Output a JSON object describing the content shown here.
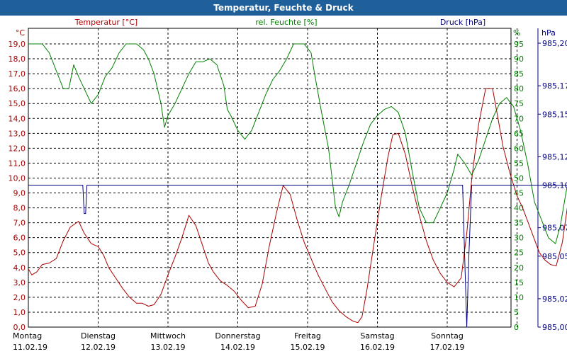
{
  "window_title": "Temperatur, Feuchte & Druck",
  "chart_data": {
    "type": "line",
    "title": "Temperatur, Feuchte & Druck",
    "x_categories": [
      {
        "day": "Montag",
        "date": "11.02.19"
      },
      {
        "day": "Dienstag",
        "date": "12.02.19"
      },
      {
        "day": "Mittwoch",
        "date": "13.02.19"
      },
      {
        "day": "Donnerstag",
        "date": "14.02.19"
      },
      {
        "day": "Freitag",
        "date": "15.02.19"
      },
      {
        "day": "Samstag",
        "date": "16.02.19"
      },
      {
        "day": "Sonntag",
        "date": "17.02.19"
      }
    ],
    "axes": {
      "temp": {
        "label": "Temperatur [°C]",
        "unit": "°C",
        "min": 0,
        "max": 19,
        "ticks": [
          "0,0",
          "1,0",
          "2,0",
          "3,0",
          "4,0",
          "5,0",
          "6,0",
          "7,0",
          "8,0",
          "9,0",
          "10,0",
          "11,0",
          "12,0",
          "13,0",
          "14,0",
          "15,0",
          "16,0",
          "17,0",
          "18,0",
          "19,0"
        ]
      },
      "hum": {
        "label": "rel. Feuchte [%]",
        "unit": "%",
        "min": 0,
        "max": 95,
        "ticks": [
          "0",
          "5",
          "10",
          "15",
          "20",
          "25",
          "30",
          "35",
          "40",
          "45",
          "50",
          "55",
          "60",
          "65",
          "70",
          "75",
          "80",
          "85",
          "90",
          "95"
        ]
      },
      "press": {
        "label": "Druck [hPa]",
        "unit": "hPa",
        "min": 985.0,
        "max": 985.2,
        "ticks": [
          "985,00",
          "985,02",
          "985,05",
          "985,07",
          "985,10",
          "985,12",
          "985,15",
          "985,17",
          "985,20"
        ]
      }
    },
    "grid": true,
    "colors": {
      "temp": "#aa0000",
      "hum": "#008000",
      "press": "#000080",
      "title_bar": "#1f5f9a",
      "grid": "#000000"
    },
    "series": [
      {
        "name": "Temperatur [°C]",
        "axis": "temp",
        "points": [
          [
            0,
            3.9
          ],
          [
            0.05,
            3.5
          ],
          [
            0.12,
            3.7
          ],
          [
            0.2,
            4.2
          ],
          [
            0.3,
            4.3
          ],
          [
            0.4,
            4.6
          ],
          [
            0.5,
            5.8
          ],
          [
            0.6,
            6.7
          ],
          [
            0.72,
            7.1
          ],
          [
            0.8,
            6.3
          ],
          [
            0.9,
            5.6
          ],
          [
            1.0,
            5.4
          ],
          [
            1.08,
            4.8
          ],
          [
            1.15,
            4.0
          ],
          [
            1.25,
            3.3
          ],
          [
            1.35,
            2.6
          ],
          [
            1.45,
            2.0
          ],
          [
            1.55,
            1.6
          ],
          [
            1.63,
            1.6
          ],
          [
            1.72,
            1.4
          ],
          [
            1.8,
            1.5
          ],
          [
            1.9,
            2.2
          ],
          [
            2.0,
            3.5
          ],
          [
            2.1,
            4.7
          ],
          [
            2.2,
            6.0
          ],
          [
            2.3,
            7.5
          ],
          [
            2.4,
            6.8
          ],
          [
            2.5,
            5.4
          ],
          [
            2.58,
            4.3
          ],
          [
            2.65,
            3.7
          ],
          [
            2.75,
            3.1
          ],
          [
            2.85,
            2.8
          ],
          [
            2.95,
            2.4
          ],
          [
            3.05,
            1.8
          ],
          [
            3.15,
            1.3
          ],
          [
            3.25,
            1.4
          ],
          [
            3.35,
            2.9
          ],
          [
            3.45,
            5.4
          ],
          [
            3.55,
            7.6
          ],
          [
            3.65,
            9.5
          ],
          [
            3.75,
            8.9
          ],
          [
            3.85,
            7.2
          ],
          [
            3.95,
            5.7
          ],
          [
            4.05,
            4.6
          ],
          [
            4.15,
            3.5
          ],
          [
            4.25,
            2.6
          ],
          [
            4.35,
            1.7
          ],
          [
            4.45,
            1.1
          ],
          [
            4.55,
            0.7
          ],
          [
            4.65,
            0.4
          ],
          [
            4.72,
            0.3
          ],
          [
            4.78,
            0.7
          ],
          [
            4.85,
            2.5
          ],
          [
            4.95,
            5.6
          ],
          [
            5.05,
            8.6
          ],
          [
            5.15,
            11.4
          ],
          [
            5.22,
            12.9
          ],
          [
            5.3,
            13.0
          ],
          [
            5.4,
            11.6
          ],
          [
            5.5,
            9.4
          ],
          [
            5.6,
            7.5
          ],
          [
            5.7,
            5.8
          ],
          [
            5.8,
            4.5
          ],
          [
            5.9,
            3.6
          ],
          [
            6.0,
            3.0
          ],
          [
            6.1,
            2.7
          ],
          [
            6.2,
            3.3
          ],
          [
            6.28,
            6.3
          ],
          [
            6.35,
            9.9
          ],
          [
            6.45,
            13.6
          ],
          [
            6.55,
            16.0
          ],
          [
            6.65,
            16.0
          ],
          [
            6.72,
            14.2
          ],
          [
            6.8,
            12.1
          ],
          [
            6.9,
            10.3
          ],
          [
            7.0,
            8.8
          ],
          [
            7.08,
            8.0
          ],
          [
            7.16,
            7.0
          ],
          [
            7.24,
            6.0
          ],
          [
            7.32,
            5.0
          ],
          [
            7.4,
            4.5
          ],
          [
            7.48,
            4.2
          ],
          [
            7.56,
            4.1
          ],
          [
            7.65,
            5.7
          ],
          [
            7.75,
            9.0
          ],
          [
            7.85,
            12.6
          ],
          [
            7.95,
            16.1
          ],
          [
            8.05,
            18.9
          ],
          [
            8.12,
            17.5
          ],
          [
            8.2,
            15.7
          ],
          [
            8.28,
            13.1
          ],
          [
            8.35,
            10.0
          ],
          [
            8.45,
            7.7
          ],
          [
            8.55,
            5.1
          ],
          [
            8.63,
            4.2
          ],
          [
            8.7,
            4.0
          ],
          [
            8.78,
            4.0
          ],
          [
            8.85,
            3.5
          ],
          [
            8.93,
            3.3
          ],
          [
            9.0,
            3.6
          ],
          [
            9.1,
            6.0
          ],
          [
            9.2,
            10.0
          ],
          [
            9.3,
            14.2
          ],
          [
            9.4,
            16.2
          ],
          [
            9.5,
            15.2
          ],
          [
            9.6,
            13.3
          ],
          [
            9.7,
            11.8
          ],
          [
            9.78,
            9.9
          ],
          [
            9.86,
            7.4
          ]
        ]
      },
      {
        "name": "rel. Feuchte [%]",
        "axis": "hum",
        "points": [
          [
            0,
            95
          ],
          [
            0.2,
            95
          ],
          [
            0.3,
            92
          ],
          [
            0.4,
            86
          ],
          [
            0.5,
            80
          ],
          [
            0.58,
            80
          ],
          [
            0.65,
            88
          ],
          [
            0.72,
            84
          ],
          [
            0.8,
            80
          ],
          [
            0.9,
            75
          ],
          [
            1.0,
            78
          ],
          [
            1.1,
            84
          ],
          [
            1.2,
            87
          ],
          [
            1.3,
            92
          ],
          [
            1.4,
            95
          ],
          [
            1.55,
            95
          ],
          [
            1.65,
            93
          ],
          [
            1.72,
            90
          ],
          [
            1.8,
            85
          ],
          [
            1.9,
            75
          ],
          [
            1.95,
            67
          ],
          [
            2.0,
            71
          ],
          [
            2.1,
            75
          ],
          [
            2.2,
            80
          ],
          [
            2.3,
            85
          ],
          [
            2.4,
            89
          ],
          [
            2.5,
            89
          ],
          [
            2.6,
            90
          ],
          [
            2.7,
            88
          ],
          [
            2.8,
            81
          ],
          [
            2.85,
            73
          ],
          [
            2.9,
            71
          ],
          [
            3.0,
            66
          ],
          [
            3.1,
            63
          ],
          [
            3.2,
            66
          ],
          [
            3.3,
            72
          ],
          [
            3.4,
            78
          ],
          [
            3.5,
            83
          ],
          [
            3.6,
            86
          ],
          [
            3.7,
            90
          ],
          [
            3.8,
            95
          ],
          [
            3.95,
            95
          ],
          [
            4.05,
            92
          ],
          [
            4.1,
            85
          ],
          [
            4.2,
            72
          ],
          [
            4.3,
            60
          ],
          [
            4.35,
            50
          ],
          [
            4.4,
            40
          ],
          [
            4.45,
            37
          ],
          [
            4.5,
            42
          ],
          [
            4.6,
            48
          ],
          [
            4.7,
            55
          ],
          [
            4.8,
            62
          ],
          [
            4.9,
            68
          ],
          [
            5.0,
            71
          ],
          [
            5.1,
            73
          ],
          [
            5.2,
            74
          ],
          [
            5.3,
            72
          ],
          [
            5.4,
            65
          ],
          [
            5.5,
            52
          ],
          [
            5.6,
            40
          ],
          [
            5.7,
            35
          ],
          [
            5.8,
            35
          ],
          [
            5.9,
            40
          ],
          [
            6.0,
            45
          ],
          [
            6.1,
            53
          ],
          [
            6.15,
            58
          ],
          [
            6.25,
            55
          ],
          [
            6.35,
            51
          ],
          [
            6.45,
            56
          ],
          [
            6.55,
            63
          ],
          [
            6.65,
            70
          ],
          [
            6.75,
            75
          ],
          [
            6.85,
            77
          ],
          [
            6.95,
            74
          ],
          [
            7.05,
            66
          ],
          [
            7.15,
            55
          ],
          [
            7.25,
            42
          ],
          [
            7.35,
            36
          ],
          [
            7.45,
            30
          ],
          [
            7.55,
            28
          ],
          [
            7.62,
            34
          ],
          [
            7.7,
            45
          ],
          [
            7.78,
            55
          ],
          [
            7.85,
            62
          ],
          [
            7.95,
            68
          ],
          [
            8.05,
            74
          ],
          [
            8.15,
            80
          ],
          [
            8.25,
            86
          ],
          [
            8.35,
            90
          ],
          [
            8.45,
            92
          ],
          [
            8.55,
            93
          ],
          [
            8.62,
            91
          ],
          [
            8.7,
            86
          ],
          [
            8.8,
            77
          ],
          [
            8.9,
            65
          ],
          [
            9.0,
            52
          ],
          [
            9.1,
            44
          ],
          [
            9.2,
            40
          ],
          [
            9.3,
            40
          ],
          [
            9.4,
            42
          ],
          [
            9.5,
            43
          ],
          [
            9.6,
            41
          ],
          [
            9.7,
            43
          ],
          [
            9.8,
            56
          ],
          [
            9.86,
            62
          ]
        ]
      },
      {
        "name": "Druck [hPa]",
        "axis": "press",
        "points": [
          [
            0,
            985.1
          ],
          [
            0.78,
            985.1
          ],
          [
            0.8,
            985.08
          ],
          [
            0.82,
            985.08
          ],
          [
            0.84,
            985.1
          ],
          [
            6.15,
            985.1
          ],
          [
            6.22,
            985.1
          ],
          [
            6.25,
            985.05
          ],
          [
            6.28,
            985.0
          ],
          [
            6.31,
            985.05
          ],
          [
            6.35,
            985.1
          ],
          [
            9.86,
            985.1
          ]
        ]
      }
    ]
  }
}
